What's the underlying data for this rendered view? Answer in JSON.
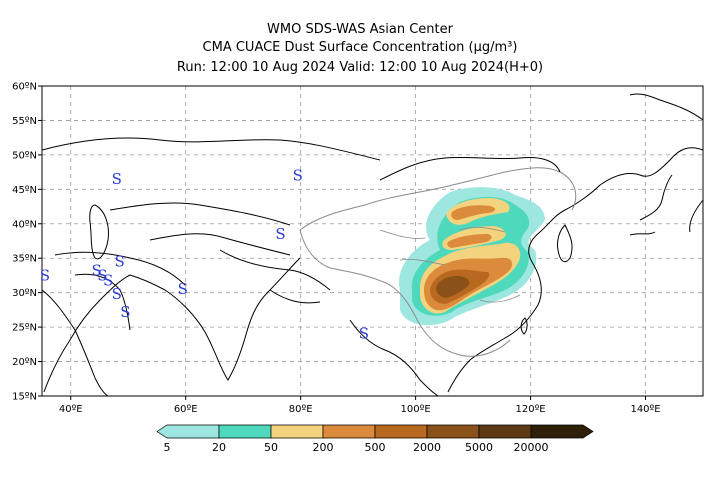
{
  "title": {
    "line1": "WMO SDS-WAS Asian Center",
    "line2": "CMA CUACE Dust Surface Concentration (μg/m³)",
    "line3": "Run: 12:00 10 Aug 2024    Valid: 12:00 10 Aug 2024(H+0)"
  },
  "map": {
    "lon_range": [
      35,
      150
    ],
    "lat_range": [
      15,
      60
    ],
    "lat_ticks": [
      "60ºN",
      "55ºN",
      "50ºN",
      "45ºN",
      "40ºN",
      "35ºN",
      "30ºN",
      "25ºN",
      "20ºN",
      "15ºN"
    ],
    "lon_ticks": [
      "40ºE",
      "60ºE",
      "80ºE",
      "100ºE",
      "120ºE",
      "140ºE"
    ],
    "grid": "dashed",
    "station_symbol": "S",
    "stations": [
      {
        "lon": 48,
        "lat": 46.5
      },
      {
        "lon": 79.5,
        "lat": 47
      },
      {
        "lon": 76.5,
        "lat": 38.5
      },
      {
        "lon": 48.5,
        "lat": 34.5
      },
      {
        "lon": 44.5,
        "lat": 33.2
      },
      {
        "lon": 45.5,
        "lat": 32.5
      },
      {
        "lon": 46.5,
        "lat": 31.8
      },
      {
        "lon": 35.5,
        "lat": 32.5
      },
      {
        "lon": 48,
        "lat": 29.8
      },
      {
        "lon": 49.5,
        "lat": 27.2
      },
      {
        "lon": 59.5,
        "lat": 30.5
      },
      {
        "lon": 91,
        "lat": 24.1
      }
    ]
  },
  "colorbar": {
    "levels": [
      "5",
      "20",
      "50",
      "200",
      "500",
      "2000",
      "5000",
      "20000"
    ],
    "colors": [
      "#9ee6e0",
      "#4fd9bc",
      "#f3d37e",
      "#dc8a3c",
      "#b8681f",
      "#8a5119",
      "#5c3b14",
      "#2f1f0a"
    ]
  }
}
